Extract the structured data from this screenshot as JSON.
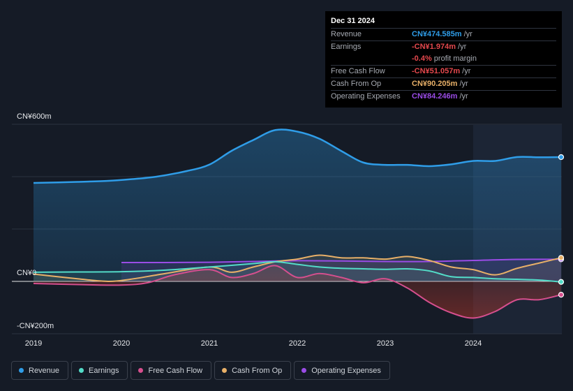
{
  "chart_data": {
    "type": "area",
    "title": "",
    "y_unit_labels": [
      "CN¥600m",
      "CN¥0",
      "-CN¥200m"
    ],
    "ylim": [
      -200,
      600
    ],
    "xlim": [
      2019,
      2025.0
    ],
    "x_tick_labels": [
      "2019",
      "2020",
      "2021",
      "2022",
      "2023",
      "2024"
    ],
    "x_ticks": [
      2019,
      2020,
      2021,
      2022,
      2023,
      2024
    ],
    "forecast_shade_start": 2024.0,
    "series": [
      {
        "name": "Revenue",
        "color": "#2f9de8",
        "x": [
          2019.0,
          2019.5,
          2019.85,
          2020.1,
          2020.4,
          2020.75,
          2021.0,
          2021.25,
          2021.5,
          2021.75,
          2022.0,
          2022.25,
          2022.5,
          2022.75,
          2023.0,
          2023.25,
          2023.5,
          2023.75,
          2024.0,
          2024.25,
          2024.5,
          2024.75,
          2025.0
        ],
        "values": [
          376,
          380,
          384,
          390,
          400,
          422,
          446,
          498,
          540,
          578,
          572,
          545,
          498,
          454,
          445,
          445,
          440,
          447,
          460,
          460,
          475,
          474,
          474.585
        ]
      },
      {
        "name": "Earnings",
        "color": "#53dcc8",
        "x": [
          2019.0,
          2019.5,
          2020.0,
          2020.5,
          2021.0,
          2021.5,
          2021.75,
          2022.0,
          2022.25,
          2022.5,
          2022.75,
          2023.0,
          2023.25,
          2023.5,
          2023.75,
          2024.0,
          2024.25,
          2024.5,
          2024.75,
          2025.0
        ],
        "values": [
          35,
          36,
          37,
          43,
          55,
          68,
          75,
          65,
          55,
          50,
          48,
          46,
          48,
          40,
          18,
          15,
          10,
          8,
          5,
          -1.974
        ]
      },
      {
        "name": "Free Cash Flow",
        "color": "#d64f8e",
        "x": [
          2019.0,
          2019.5,
          2020.0,
          2020.3,
          2020.6,
          2021.0,
          2021.25,
          2021.5,
          2021.75,
          2022.0,
          2022.25,
          2022.5,
          2022.75,
          2023.0,
          2023.25,
          2023.5,
          2023.75,
          2024.0,
          2024.25,
          2024.5,
          2024.75,
          2025.0
        ],
        "values": [
          -8,
          -12,
          -14,
          -5,
          25,
          45,
          15,
          30,
          60,
          15,
          30,
          15,
          -5,
          10,
          -25,
          -80,
          -120,
          -140,
          -115,
          -70,
          -70,
          -51.057
        ]
      },
      {
        "name": "Cash From Op",
        "color": "#e8b068",
        "x": [
          2019.0,
          2019.5,
          2019.85,
          2020.1,
          2020.5,
          2021.0,
          2021.25,
          2021.5,
          2021.75,
          2022.0,
          2022.25,
          2022.5,
          2022.75,
          2023.0,
          2023.25,
          2023.5,
          2023.75,
          2024.0,
          2024.25,
          2024.5,
          2024.75,
          2025.0
        ],
        "values": [
          28,
          10,
          0,
          8,
          30,
          55,
          35,
          55,
          75,
          85,
          100,
          90,
          90,
          85,
          95,
          80,
          55,
          45,
          25,
          50,
          70,
          90.205
        ]
      },
      {
        "name": "Operating Expenses",
        "color": "#9a4ce6",
        "x": [
          2020.0,
          2020.5,
          2021.0,
          2021.5,
          2022.0,
          2022.5,
          2023.0,
          2023.5,
          2024.0,
          2024.5,
          2025.0
        ],
        "values": [
          72,
          72,
          73,
          76,
          79,
          78,
          76,
          76,
          80,
          84,
          84.246
        ]
      }
    ]
  },
  "tooltip": {
    "date": "Dec 31 2024",
    "rows": [
      {
        "label": "Revenue",
        "value": "CN¥474.585m",
        "unit": " /yr",
        "color": "#2f9de8"
      },
      {
        "label": "Earnings",
        "value": "-CN¥1.974m",
        "unit": " /yr",
        "color": "#e5484d"
      },
      {
        "label": "",
        "value": "-0.4%",
        "unit": " profit margin",
        "color": "#e5484d"
      },
      {
        "label": "Free Cash Flow",
        "value": "-CN¥51.057m",
        "unit": " /yr",
        "color": "#e5484d"
      },
      {
        "label": "Cash From Op",
        "value": "CN¥90.205m",
        "unit": " /yr",
        "color": "#e8b068"
      },
      {
        "label": "Operating Expenses",
        "value": "CN¥84.246m",
        "unit": " /yr",
        "color": "#9a4ce6"
      }
    ]
  },
  "legend": [
    {
      "label": "Revenue",
      "color": "#2f9de8"
    },
    {
      "label": "Earnings",
      "color": "#53dcc8"
    },
    {
      "label": "Free Cash Flow",
      "color": "#d64f8e"
    },
    {
      "label": "Cash From Op",
      "color": "#e8b068"
    },
    {
      "label": "Operating Expenses",
      "color": "#9a4ce6"
    }
  ]
}
